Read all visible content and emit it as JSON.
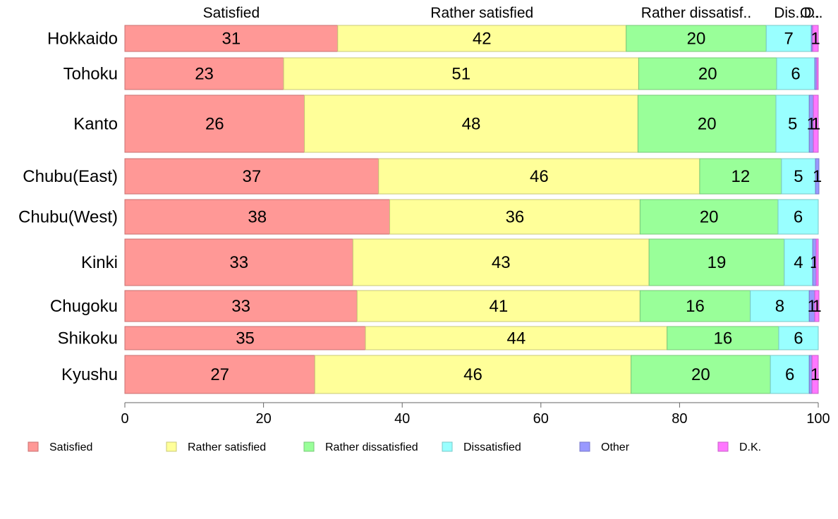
{
  "chart_data": {
    "type": "bar",
    "orientation": "horizontal",
    "stacked": true,
    "categories": [
      "Hokkaido",
      "Tohoku",
      "Kanto",
      "Chubu(East)",
      "Chubu(West)",
      "Kinki",
      "Chugoku",
      "Shikoku",
      "Kyushu"
    ],
    "series": [
      {
        "name": "Satisfied",
        "color": "#ff9896",
        "values": [
          30.7,
          22.9,
          25.9,
          36.6,
          38.2,
          32.9,
          33.5,
          34.7,
          27.4
        ],
        "labels": [
          "31",
          "23",
          "26",
          "37",
          "38",
          "33",
          "33",
          "35",
          "27"
        ]
      },
      {
        "name": "Rather satisfied",
        "color": "#ffff99",
        "values": [
          41.6,
          51.2,
          48.1,
          46.3,
          36.1,
          42.7,
          40.8,
          43.5,
          45.6
        ],
        "labels": [
          "42",
          "51",
          "48",
          "46",
          "36",
          "43",
          "41",
          "44",
          "46"
        ]
      },
      {
        "name": "Rather dissatisfied",
        "color": "#99ff99",
        "values": [
          20.2,
          19.9,
          19.9,
          11.8,
          19.9,
          19.5,
          15.9,
          16.1,
          20.1
        ],
        "labels": [
          "20",
          "20",
          "20",
          "12",
          "20",
          "19",
          "16",
          "16",
          "20"
        ]
      },
      {
        "name": "Dissatisfied",
        "color": "#99ffff",
        "values": [
          6.5,
          5.5,
          4.8,
          4.9,
          5.8,
          4.1,
          8.5,
          5.7,
          5.6
        ],
        "labels": [
          "7",
          "6",
          "5",
          "5",
          "6",
          "4",
          "8",
          "6",
          "6"
        ]
      },
      {
        "name": "Other",
        "color": "#9999ff",
        "values": [
          0.2,
          0.3,
          0.6,
          0.5,
          0.0,
          0.5,
          0.8,
          0.0,
          0.4
        ],
        "labels": [
          "",
          "",
          "1",
          "1",
          "",
          "1",
          "1",
          "",
          ""
        ]
      },
      {
        "name": "D.K.",
        "color": "#ff77ff",
        "values": [
          0.8,
          0.2,
          0.7,
          0.0,
          0.0,
          0.3,
          0.6,
          0.0,
          0.9
        ],
        "labels": [
          "1",
          "",
          "1",
          "",
          "",
          "",
          "1",
          "",
          "1"
        ]
      }
    ],
    "top_labels": [
      "Satisfied",
      "Rather satisfied",
      "Rather dissatisf..",
      "Dis..",
      "O..",
      "D.."
    ],
    "x_ticks": [
      0,
      20,
      40,
      60,
      80,
      100
    ],
    "xlim": [
      0,
      100
    ],
    "grid": false,
    "legend_position": "bottom"
  }
}
